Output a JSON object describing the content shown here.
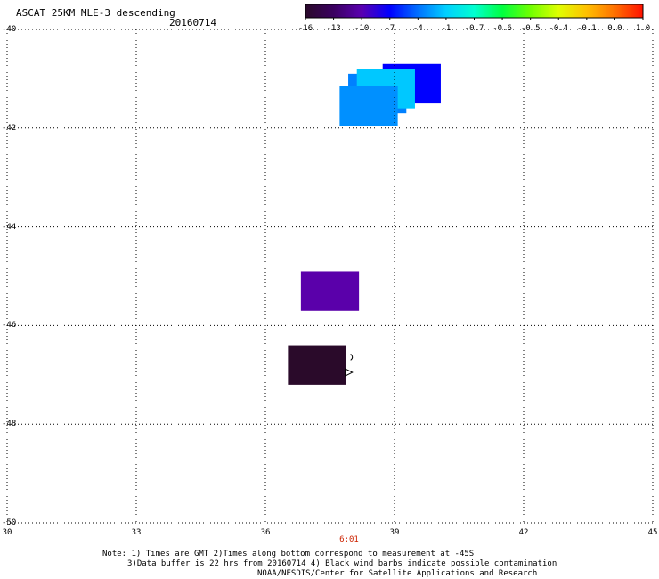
{
  "header": {
    "title": "ASCAT 25KM MLE-3 descending",
    "date": "20160714"
  },
  "colorbar": {
    "labels": [
      "-16",
      "-13",
      "-10",
      "-7",
      "-4",
      "-1",
      "-0.7",
      "-0.6",
      "-0.5",
      "-0.4",
      "-0.1",
      "0.0",
      "1.0"
    ],
    "colors": [
      "#2a0a2a",
      "#3a0060",
      "#5a00b0",
      "#0000ff",
      "#0070ff",
      "#00d0ff",
      "#00ffd0",
      "#00ff40",
      "#70ff00",
      "#e0ff00",
      "#ffc000",
      "#ff7000",
      "#ff1000"
    ]
  },
  "map": {
    "lat_labels": [
      "-40",
      "-42",
      "-44",
      "-46",
      "-48",
      "-50"
    ],
    "lon_labels": [
      "30",
      "33",
      "36",
      "39",
      "42",
      "45"
    ],
    "time_label": "6:01",
    "cells": [
      {
        "lon": 39.4,
        "lat": -41.1,
        "color": "#0000ff"
      },
      {
        "lon": 38.6,
        "lat": -41.3,
        "color": "#0080ff"
      },
      {
        "lon": 38.8,
        "lat": -41.2,
        "color": "#00c8ff"
      },
      {
        "lon": 38.4,
        "lat": -41.55,
        "color": "#0090ff"
      },
      {
        "lon": 37.5,
        "lat": -45.3,
        "color": "#5a00aa"
      },
      {
        "lon": 37.2,
        "lat": -46.8,
        "color": "#2a0a2a"
      }
    ]
  },
  "notes": {
    "line1": "Note: 1) Times are GMT 2)Times along bottom correspond to measurement at -45S",
    "line2": "3)Data buffer is 22 hrs from 20160714 4) Black wind barbs indicate possible contamination",
    "line3": "NOAA/NESDIS/Center for Satellite Applications and Research"
  }
}
